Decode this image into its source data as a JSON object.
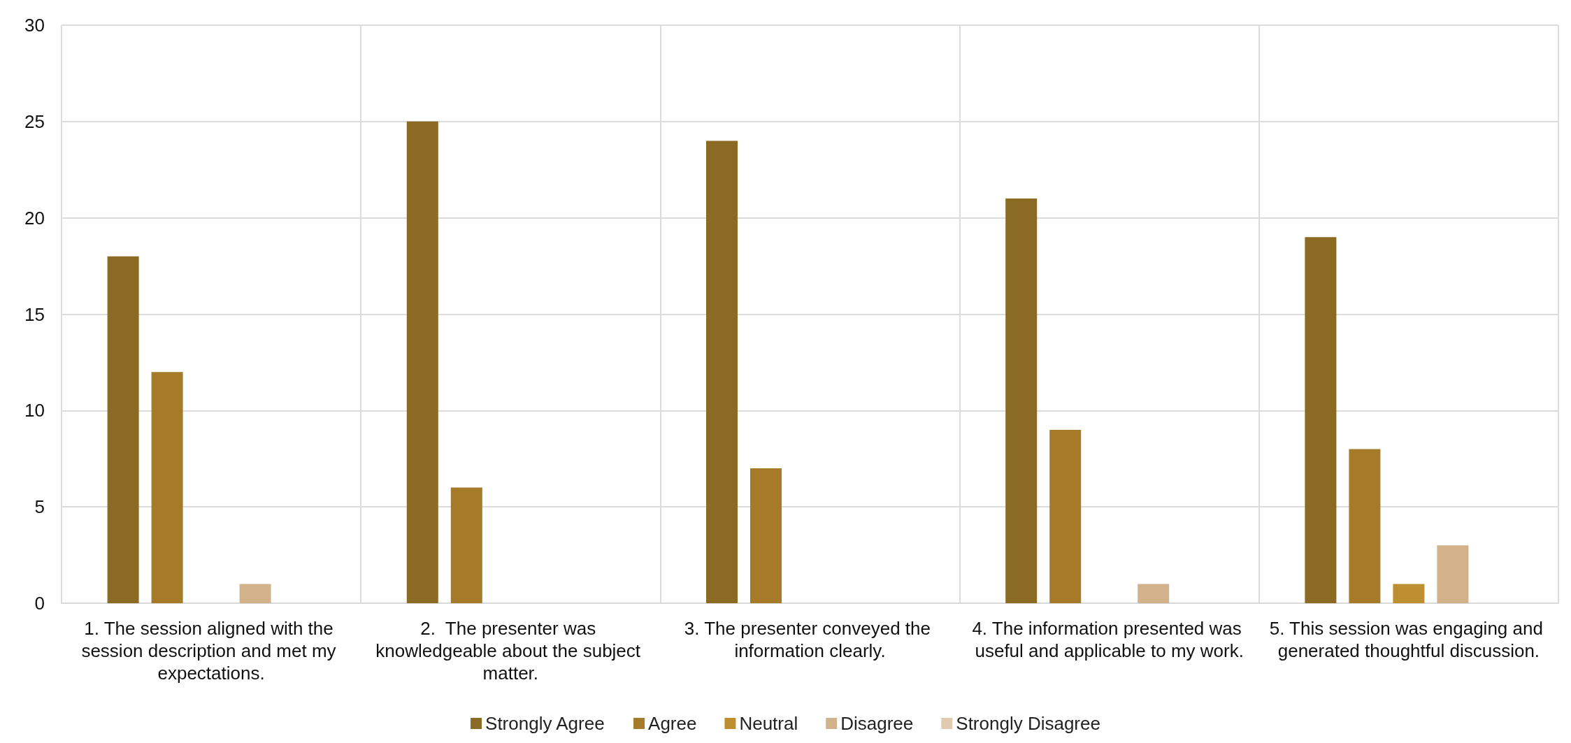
{
  "chart_data": {
    "type": "bar",
    "categories": [
      "1. The session aligned with the session description and met my expectations.",
      "2.  The presenter was knowledgeable about the subject matter.",
      "3. The presenter conveyed the information clearly.",
      "4. The information presented was useful and applicable to my work.",
      "5. This session was engaging and generated thoughtful discussion."
    ],
    "series": [
      {
        "name": "Strongly Agree",
        "color": "#8b6a23",
        "values": [
          18,
          25,
          24,
          21,
          19
        ]
      },
      {
        "name": "Agree",
        "color": "#a57b2a",
        "values": [
          12,
          6,
          7,
          9,
          8
        ]
      },
      {
        "name": "Neutral",
        "color": "#bd8f30",
        "values": [
          0,
          0,
          0,
          0,
          1
        ]
      },
      {
        "name": "Disagree",
        "color": "#d1b28a",
        "values": [
          1,
          0,
          0,
          1,
          3
        ]
      },
      {
        "name": "Strongly Disagree",
        "color": "#e0cbb0",
        "values": [
          0,
          0,
          0,
          0,
          0
        ]
      }
    ],
    "ylim": [
      0,
      30
    ],
    "yticks": [
      0,
      5,
      10,
      15,
      20,
      25,
      30
    ],
    "grid": true,
    "legend": "bottom"
  }
}
